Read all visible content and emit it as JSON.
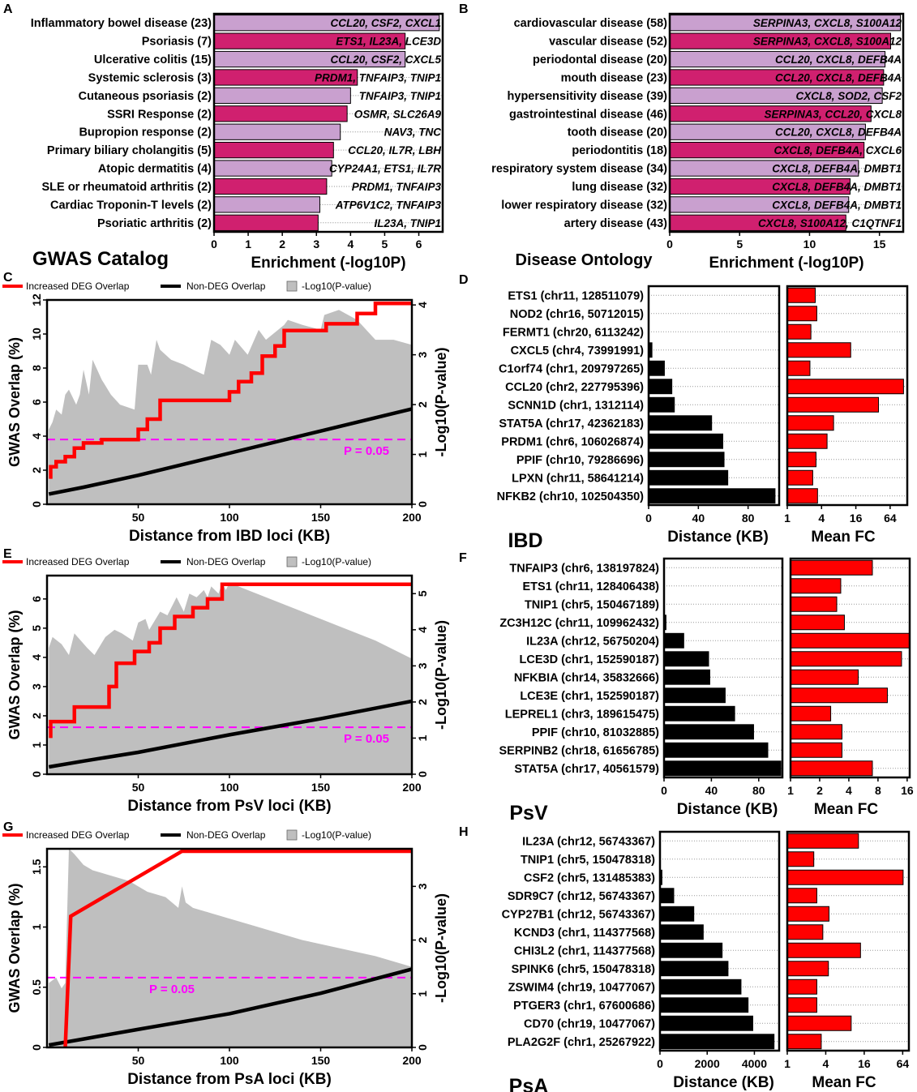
{
  "panel_letters": {
    "A": "A",
    "B": "B",
    "C": "C",
    "D": "D",
    "E": "E",
    "F": "F",
    "G": "G",
    "H": "H"
  },
  "colors": {
    "light_bar": "#c9a0cf",
    "dark_bar": "#d0206f",
    "red": "#ff0000",
    "black": "#000000",
    "gray_fill": "#bfbfbf",
    "magenta": "#ff00ff",
    "label_text": "#000000"
  },
  "legend": {
    "increased": "Increased DEG Overlap",
    "nondeg": "Non-DEG Overlap",
    "pvalue": "-Log10(P-value)"
  },
  "chart_data": [
    {
      "id": "A",
      "type": "bar",
      "orientation": "horizontal",
      "title": "GWAS Catalog",
      "xlabel": "Enrichment (-log10P)",
      "xlim": [
        0,
        6.7
      ],
      "xticks": [
        0,
        1,
        2,
        3,
        4,
        5,
        6
      ],
      "categories": [
        "Inflammatory bowel disease (23)",
        "Psoriasis (7)",
        "Ulcerative colitis (15)",
        "Systemic sclerosis (3)",
        "Cutaneous psoriasis (2)",
        "SSRI Response (2)",
        "Bupropion response (2)",
        "Primary biliary cholangitis (5)",
        "Atopic dermatitis (4)",
        "SLE or rheumatoid arthritis (2)",
        "Cardiac Troponin-T levels (2)",
        "Psoriatic arthritis (2)"
      ],
      "values": [
        6.6,
        5.6,
        5.6,
        4.2,
        4.0,
        3.9,
        3.7,
        3.5,
        3.45,
        3.3,
        3.1,
        3.05
      ],
      "genes": [
        "CCL20, CSF2, CXCL1",
        "ETS1, IL23A, LCE3D",
        "CCL20, CSF2, CXCL5",
        "PRDM1, TNFAIP3, TNIP1",
        "TNFAIP3, TNIP1",
        "OSMR, SLC26A9",
        "NAV3, TNC",
        "CCL20, IL7R, LBH",
        "CYP24A1, ETS1, IL7R",
        "PRDM1, TNFAIP3",
        "ATP6V1C2, TNFAIP3",
        "IL23A, TNIP1"
      ]
    },
    {
      "id": "B",
      "type": "bar",
      "orientation": "horizontal",
      "title": "Disease Ontology",
      "xlabel": "Enrichment (-log10P)",
      "xlim": [
        0,
        16.7
      ],
      "xticks": [
        0,
        5,
        10,
        15
      ],
      "categories": [
        "cardiovascular disease (58)",
        "vascular disease (52)",
        "periodontal disease (20)",
        "mouth disease (23)",
        "hypersensitivity disease (39)",
        "gastrointestinal disease (46)",
        "tooth disease (20)",
        "periodontitis (18)",
        "respiratory system disease (34)",
        "lung disease (32)",
        "lower respiratory disease (32)",
        "artery disease (43)"
      ],
      "values": [
        16.5,
        15.8,
        15.4,
        15.3,
        15.2,
        14.4,
        14.0,
        13.9,
        13.5,
        12.9,
        12.8,
        12.6
      ],
      "genes": [
        "SERPINA3, CXCL8, S100A12",
        "SERPINA3, CXCL8, S100A12",
        "CCL20, CXCL8, DEFB4A",
        "CCL20, CXCL8, DEFB4A",
        "CXCL8, SOD2, CSF2",
        "SERPINA3, CCL20, CXCL8",
        "CCL20, CXCL8, DEFB4A",
        "CXCL8, DEFB4A, CXCL6",
        "CXCL8, DEFB4A, DMBT1",
        "CXCL8, DEFB4A, DMBT1",
        "CXCL8, DEFB4A, DMBT1",
        "CXCL8, S100A12, C1QTNF1"
      ]
    },
    {
      "id": "C",
      "type": "line",
      "xlabel": "Distance from IBD loci (KB)",
      "ylabel": "GWAS Overlap (%)",
      "y2label": "-Log10(P-value)",
      "xlim": [
        0,
        200
      ],
      "ylim": [
        0,
        12
      ],
      "y2lim": [
        0,
        4.1
      ],
      "xticks": [
        50,
        100,
        150,
        200
      ],
      "yticks": [
        0,
        2,
        4,
        6,
        8,
        10,
        12
      ],
      "y2ticks": [
        0,
        1,
        2,
        3,
        4
      ],
      "threshold_label": "P = 0.05",
      "threshold_y2": 1.3,
      "series": [
        {
          "name": "Increased DEG Overlap",
          "x": [
            1,
            2,
            2,
            5,
            5,
            10,
            10,
            15,
            15,
            20,
            20,
            30,
            30,
            50,
            50,
            55,
            55,
            62,
            62,
            100,
            100,
            105,
            105,
            112,
            112,
            118,
            118,
            125,
            125,
            130,
            130,
            153,
            153,
            170,
            170,
            180,
            180,
            200
          ],
          "y": [
            1.6,
            1.6,
            2.2,
            2.2,
            2.5,
            2.5,
            2.8,
            2.8,
            3.3,
            3.3,
            3.6,
            3.6,
            3.8,
            3.8,
            4.4,
            4.4,
            5.0,
            5.0,
            6.1,
            6.1,
            6.6,
            6.6,
            7.2,
            7.2,
            7.7,
            7.7,
            8.7,
            8.7,
            9.3,
            9.3,
            10.2,
            10.2,
            10.6,
            10.6,
            11.2,
            11.2,
            11.8,
            11.8
          ]
        },
        {
          "name": "Non-DEG Overlap",
          "x": [
            1,
            20,
            50,
            100,
            150,
            200
          ],
          "y": [
            0.6,
            1.0,
            1.7,
            3.0,
            4.3,
            5.6
          ]
        },
        {
          "name": "-Log10(P-value)",
          "x": [
            1,
            3,
            5,
            8,
            10,
            12,
            16,
            18,
            20,
            23,
            25,
            30,
            35,
            40,
            48,
            50,
            55,
            57,
            60,
            62,
            68,
            75,
            80,
            86,
            90,
            95,
            100,
            103,
            110,
            116,
            120,
            130,
            132,
            140,
            150,
            152,
            160,
            170,
            175,
            180,
            190,
            200
          ],
          "y": [
            1.5,
            1.65,
            1.9,
            1.8,
            2.2,
            2.3,
            2.0,
            2.2,
            2.7,
            2.2,
            2.9,
            2.5,
            2.2,
            2.0,
            1.9,
            2.8,
            2.8,
            2.6,
            3.3,
            3.1,
            2.9,
            2.8,
            2.7,
            2.6,
            3.3,
            3.2,
            3.0,
            3.3,
            3.0,
            3.5,
            3.3,
            3.6,
            3.7,
            3.6,
            3.5,
            3.8,
            3.9,
            3.7,
            3.5,
            3.3,
            3.3,
            3.2
          ]
        }
      ]
    },
    {
      "id": "D",
      "type": "bar",
      "orientation": "horizontal",
      "title": "IBD",
      "categories": [
        "ETS1 (chr11, 128511079)",
        "NOD2 (chr16, 50712015)",
        "FERMT1 (chr20, 6113242)",
        "CXCL5 (chr4, 73991991)",
        "C1orf74 (chr1, 209797265)",
        "CCL20 (chr2, 227795396)",
        "SCNN1D (chr1, 1312114)",
        "STAT5A (chr17, 42362183)",
        "PRDM1 (chr6, 106026874)",
        "PPIF (chr10, 79286696)",
        "LPXN (chr11, 58641214)",
        "NFKB2 (chr10, 102504350)"
      ],
      "distance": {
        "xlabel": "Distance (KB)",
        "xlim": [
          0,
          105
        ],
        "xticks": [
          0,
          40,
          80
        ],
        "values": [
          0,
          0,
          0,
          3,
          13,
          19,
          21,
          51,
          60,
          61,
          64,
          102
        ]
      },
      "fc": {
        "xlabel": "Mean FC",
        "log_base": 2,
        "xlim": [
          1,
          128
        ],
        "xticks": [
          1,
          4,
          16,
          64
        ],
        "tick_labels": [
          "1",
          "4",
          "16",
          "64"
        ],
        "values": [
          3.1,
          3.3,
          2.6,
          13,
          2.5,
          110,
          40,
          6.5,
          5.0,
          3.2,
          2.8,
          3.4
        ]
      }
    },
    {
      "id": "E",
      "type": "line",
      "xlabel": "Distance from PsV loci (KB)",
      "ylabel": "GWAS Overlap (%)",
      "y2label": "-Log10(P-value)",
      "xlim": [
        0,
        200
      ],
      "ylim": [
        0,
        6.8
      ],
      "y2lim": [
        0,
        5.5
      ],
      "xticks": [
        50,
        100,
        150,
        200
      ],
      "yticks": [
        0,
        1,
        2,
        3,
        4,
        5,
        6
      ],
      "y2ticks": [
        0,
        1,
        2,
        3,
        4,
        5
      ],
      "threshold_label": "P = 0.05",
      "threshold_y2": 1.3,
      "series": [
        {
          "name": "Increased DEG Overlap",
          "x": [
            1,
            2,
            2,
            15,
            15,
            34,
            34,
            38,
            38,
            48,
            48,
            56,
            56,
            62,
            62,
            70,
            70,
            80,
            80,
            88,
            88,
            96,
            96,
            200
          ],
          "y": [
            1.3,
            1.3,
            1.8,
            1.8,
            2.3,
            2.3,
            3.0,
            3.0,
            3.8,
            3.8,
            4.2,
            4.2,
            4.5,
            4.5,
            5.0,
            5.0,
            5.4,
            5.4,
            5.7,
            5.7,
            6.0,
            6.0,
            6.5,
            6.5
          ]
        },
        {
          "name": "Non-DEG Overlap",
          "x": [
            1,
            20,
            50,
            100,
            150,
            200
          ],
          "y": [
            0.25,
            0.45,
            0.75,
            1.35,
            1.9,
            2.5
          ]
        },
        {
          "name": "-Log10(P-value)",
          "x": [
            1,
            3,
            8,
            12,
            15,
            22,
            26,
            32,
            37,
            41,
            47,
            50,
            54,
            56,
            62,
            66,
            71,
            75,
            78,
            82,
            86,
            88,
            90,
            94,
            96,
            98,
            100,
            110,
            120,
            140,
            160,
            180,
            200
          ],
          "y": [
            3.5,
            3.8,
            3.6,
            3.3,
            3.9,
            3.5,
            3.3,
            3.8,
            4.0,
            3.9,
            3.7,
            4.2,
            4.3,
            4.0,
            4.5,
            4.4,
            4.9,
            4.5,
            5.0,
            4.9,
            5.1,
            4.9,
            5.2,
            5.0,
            5.3,
            5.1,
            5.3,
            5.1,
            4.9,
            4.5,
            4.1,
            3.7,
            3.2
          ]
        }
      ]
    },
    {
      "id": "F",
      "type": "bar",
      "orientation": "horizontal",
      "title": "PsV",
      "categories": [
        "TNFAIP3 (chr6, 138197824)",
        "ETS1 (chr11, 128406438)",
        "TNIP1 (chr5, 150467189)",
        "ZC3H12C (chr11, 109962432)",
        "IL23A (chr12, 56750204)",
        "LCE3D (chr1, 152590187)",
        "NFKBIA (chr14, 35832666)",
        "LCE3E (chr1, 152590187)",
        "LEPREL1 (chr3, 189615475)",
        "PPIF (chr10, 81032885)",
        "SERPINB2 (chr18, 61656785)",
        "STAT5A (chr17, 40561579)"
      ],
      "distance": {
        "xlabel": "Distance (KB)",
        "xlim": [
          0,
          100
        ],
        "xticks": [
          0,
          40,
          80
        ],
        "values": [
          0,
          0,
          0,
          2,
          17,
          38,
          39,
          52,
          60,
          76,
          88,
          99
        ]
      },
      "fc": {
        "xlabel": "Mean FC",
        "log_base": 2,
        "xlim": [
          1,
          17
        ],
        "xticks": [
          1,
          2,
          4,
          8,
          16
        ],
        "tick_labels": [
          "1",
          "2",
          "4",
          "8",
          "16"
        ],
        "values": [
          7.0,
          3.3,
          3.0,
          3.6,
          17,
          14,
          5.0,
          10,
          2.6,
          3.4,
          3.4,
          7.0
        ]
      }
    },
    {
      "id": "G",
      "type": "line",
      "xlabel": "Distance from PsA loci (KB)",
      "ylabel": "GWAS Overlap (%)",
      "y2label": "-Log10(P-value)",
      "xlim": [
        0,
        200
      ],
      "ylim": [
        0,
        1.65
      ],
      "y2lim": [
        0,
        3.7
      ],
      "xticks": [
        50,
        100,
        150,
        200
      ],
      "yticks": [
        0,
        0.5,
        1,
        1.5
      ],
      "y2ticks": [
        0,
        1,
        2,
        3
      ],
      "threshold_label": "P = 0.05",
      "threshold_y2": 1.3,
      "series": [
        {
          "name": "Increased DEG Overlap",
          "x": [
            10,
            13,
            13,
            74,
            74,
            200
          ],
          "y": [
            0,
            1.09,
            1.09,
            1.63,
            1.63,
            1.63
          ]
        },
        {
          "name": "Non-DEG Overlap",
          "x": [
            1,
            20,
            50,
            100,
            150,
            200
          ],
          "y": [
            0.02,
            0.07,
            0.15,
            0.28,
            0.45,
            0.65
          ]
        },
        {
          "name": "-Log10(P-value)",
          "x": [
            1,
            5,
            8,
            10,
            12,
            15,
            20,
            25,
            35,
            45,
            55,
            65,
            72,
            74,
            76,
            80,
            90,
            100,
            120,
            140,
            160,
            180,
            200
          ],
          "y": [
            1.2,
            1.3,
            1.1,
            1.2,
            3.7,
            3.6,
            3.4,
            3.3,
            3.2,
            3.1,
            2.9,
            2.8,
            2.6,
            3.0,
            2.7,
            2.6,
            2.5,
            2.4,
            2.2,
            2.0,
            1.85,
            1.7,
            1.5
          ]
        }
      ]
    },
    {
      "id": "H",
      "type": "bar",
      "orientation": "horizontal",
      "title": "PsA",
      "categories": [
        "IL23A (chr12, 56743367)",
        "TNIP1 (chr5, 150478318)",
        "CSF2 (chr5, 131485383)",
        "SDR9C7 (chr12, 56743367)",
        "CYP27B1 (chr12, 56743367)",
        "KCND3 (chr1, 114377568)",
        "CHI3L2 (chr1, 114377568)",
        "SPINK6 (chr5, 150478318)",
        "ZSWIM4 (chr19, 10477067)",
        "PTGER3 (chr1, 67600686)",
        "CD70 (chr19, 10477067)",
        "PLA2G2F (chr1, 25267922)"
      ],
      "distance": {
        "xlabel": "Distance (KB)",
        "xlim": [
          0,
          5050
        ],
        "xticks": [
          0,
          2000,
          4000
        ],
        "values": [
          0,
          0,
          100,
          600,
          1450,
          1850,
          2650,
          2900,
          3450,
          3750,
          3950,
          4850
        ]
      },
      "fc": {
        "xlabel": "Mean FC",
        "log_base": 2,
        "xlim": [
          1,
          80
        ],
        "xticks": [
          1,
          4,
          16,
          64
        ],
        "tick_labels": [
          "1",
          "4",
          "16",
          "64"
        ],
        "values": [
          13,
          2.6,
          65,
          2.9,
          4.5,
          3.6,
          14,
          4.4,
          2.9,
          2.9,
          10,
          3.4
        ]
      }
    }
  ]
}
